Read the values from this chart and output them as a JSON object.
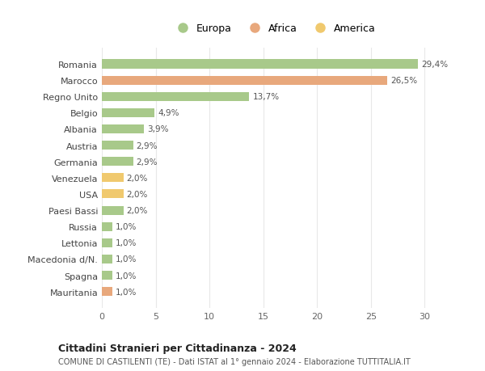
{
  "categories": [
    "Romania",
    "Marocco",
    "Regno Unito",
    "Belgio",
    "Albania",
    "Austria",
    "Germania",
    "Venezuela",
    "USA",
    "Paesi Bassi",
    "Russia",
    "Lettonia",
    "Macedonia d/N.",
    "Spagna",
    "Mauritania"
  ],
  "values": [
    29.4,
    26.5,
    13.7,
    4.9,
    3.9,
    2.9,
    2.9,
    2.0,
    2.0,
    2.0,
    1.0,
    1.0,
    1.0,
    1.0,
    1.0
  ],
  "labels": [
    "29,4%",
    "26,5%",
    "13,7%",
    "4,9%",
    "3,9%",
    "2,9%",
    "2,9%",
    "2,0%",
    "2,0%",
    "2,0%",
    "1,0%",
    "1,0%",
    "1,0%",
    "1,0%",
    "1,0%"
  ],
  "colors": [
    "#a8c98a",
    "#e8a87c",
    "#a8c98a",
    "#a8c98a",
    "#a8c98a",
    "#a8c98a",
    "#a8c98a",
    "#f0c96e",
    "#f0c96e",
    "#a8c98a",
    "#a8c98a",
    "#a8c98a",
    "#a8c98a",
    "#a8c98a",
    "#e8a87c"
  ],
  "legend_labels": [
    "Europa",
    "Africa",
    "America"
  ],
  "legend_colors": [
    "#a8c98a",
    "#e8a87c",
    "#f0c96e"
  ],
  "title": "Cittadini Stranieri per Cittadinanza - 2024",
  "subtitle": "COMUNE DI CASTILENTI (TE) - Dati ISTAT al 1° gennaio 2024 - Elaborazione TUTTITALIA.IT",
  "xlim": [
    0,
    32
  ],
  "xticks": [
    0,
    5,
    10,
    15,
    20,
    25,
    30
  ],
  "background_color": "#ffffff",
  "grid_color": "#e8e8e8",
  "bar_height": 0.55
}
